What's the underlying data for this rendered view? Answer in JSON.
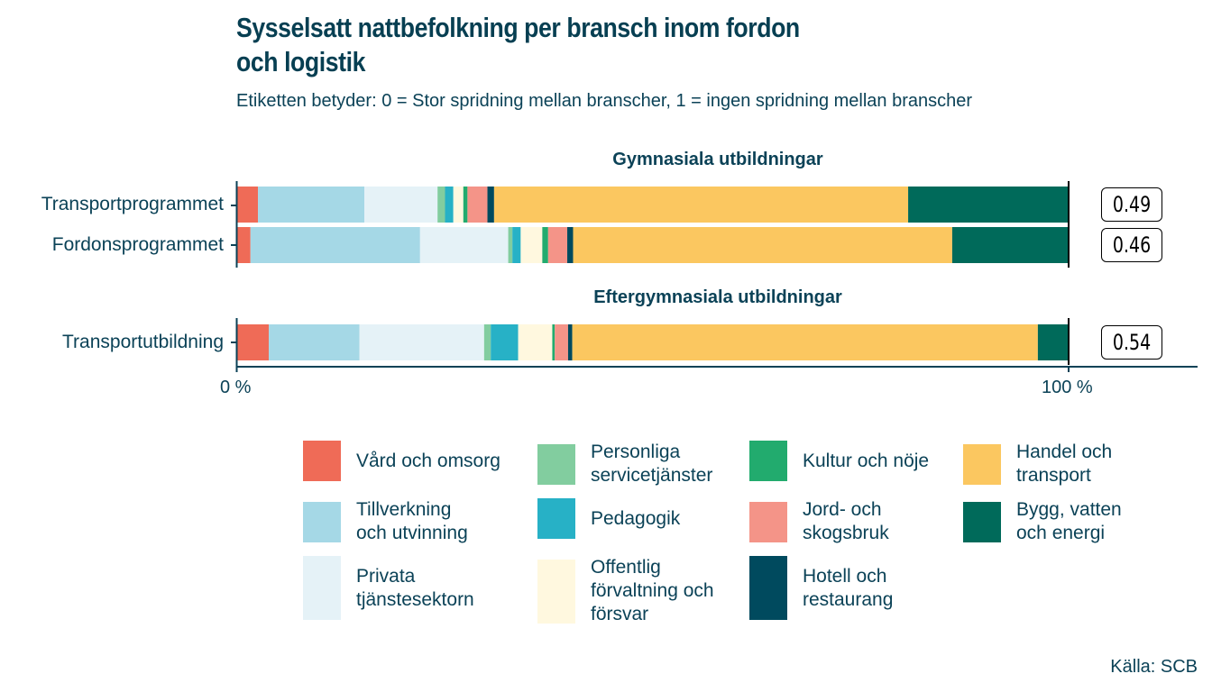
{
  "chart_data": {
    "type": "bar",
    "orientation": "horizontal",
    "stacked": true,
    "title": "Sysselsatt nattbefolkning per bransch inom fordon och logistik",
    "subtitle": "Etiketten betyder: 0 = Stor spridning mellan branscher, 1 = ingen spridning mellan branscher",
    "xlabel": "",
    "ylabel": "",
    "xlim": [
      0,
      100
    ],
    "x_ticks": [
      "0 %",
      "100 %"
    ],
    "facets": [
      {
        "title": "Gymnasiala utbildningar",
        "categories": [
          "Transportprogrammet",
          "Fordonsprogrammet"
        ],
        "labels": [
          "0.49",
          "0.46"
        ]
      },
      {
        "title": "Eftergymnasiala utbildningar",
        "categories": [
          "Transportutbildning"
        ],
        "labels": [
          "0.54"
        ]
      }
    ],
    "categories": [
      "Transportprogrammet",
      "Fordonsprogrammet",
      "Transportutbildning"
    ],
    "series": [
      {
        "name": "Vård och omsorg",
        "color": "#EF6B57",
        "values": [
          2.5,
          1.6,
          3.8
        ]
      },
      {
        "name": "Tillverkning och utvinning",
        "color": "#A5D8E6",
        "values": [
          12.8,
          20.4,
          10.9
        ]
      },
      {
        "name": "Privata tjänstesektorn",
        "color": "#E5F2F7",
        "values": [
          8.8,
          10.6,
          15.0
        ]
      },
      {
        "name": "Personliga servicetjänster",
        "color": "#82CD9F",
        "values": [
          0.9,
          0.5,
          0.8
        ]
      },
      {
        "name": "Pedagogik",
        "color": "#27B1C6",
        "values": [
          1.0,
          1.0,
          3.3
        ]
      },
      {
        "name": "Offentlig förvaltning och försvar",
        "color": "#FFF8DF",
        "values": [
          1.2,
          2.6,
          4.1
        ]
      },
      {
        "name": "Kultur och nöje",
        "color": "#22AB6E",
        "values": [
          0.5,
          0.7,
          0.3
        ]
      },
      {
        "name": "Jord- och skogsbruk",
        "color": "#F49488",
        "values": [
          2.4,
          2.3,
          1.6
        ]
      },
      {
        "name": "Hotell och restaurang",
        "color": "#004A5E",
        "values": [
          0.8,
          0.7,
          0.5
        ]
      },
      {
        "name": "Handel och transport",
        "color": "#FBC760",
        "values": [
          49.8,
          45.6,
          56.0
        ]
      },
      {
        "name": "Bygg, vatten och energi",
        "color": "#006A5A",
        "values": [
          19.3,
          14.0,
          3.7
        ]
      }
    ],
    "legend_position": "bottom",
    "grid": false,
    "source": "Källa: SCB"
  },
  "legend": {
    "items": [
      {
        "label": "Vård och omsorg",
        "color": "#EF6B57"
      },
      {
        "label": "Tillverkning\noch utvinning",
        "color": "#A5D8E6"
      },
      {
        "label": "Privata\ntjänstesektorn",
        "color": "#E5F2F7"
      },
      {
        "label": "Personliga\nservicetjänster",
        "color": "#82CD9F"
      },
      {
        "label": "Pedagogik",
        "color": "#27B1C6"
      },
      {
        "label": "Offentlig\nförvaltning och\nförsvar",
        "color": "#FFF8DF"
      },
      {
        "label": "Kultur och nöje",
        "color": "#22AB6E"
      },
      {
        "label": "Jord- och\nskogsbruk",
        "color": "#F49488"
      },
      {
        "label": "Hotell och\nrestaurang",
        "color": "#004A5E"
      },
      {
        "label": "Handel och\ntransport",
        "color": "#FBC760"
      },
      {
        "label": "Bygg, vatten\noch energi",
        "color": "#006A5A"
      }
    ]
  },
  "text": {
    "title": "Sysselsatt nattbefolkning per bransch inom fordon och logistik",
    "subtitle": "Etiketten betyder: 0 = Stor spridning mellan branscher, 1 = ingen spridning mellan branscher",
    "facet1": "Gymnasiala utbildningar",
    "facet2": "Eftergymnasiala utbildningar",
    "row1": "Transportprogrammet",
    "row2": "Fordonsprogrammet",
    "row3": "Transportutbildning",
    "label1": "0.49",
    "label2": "0.46",
    "label3": "0.54",
    "tick0": "0 %",
    "tick100": "100 %",
    "source": "Källa: SCB"
  }
}
